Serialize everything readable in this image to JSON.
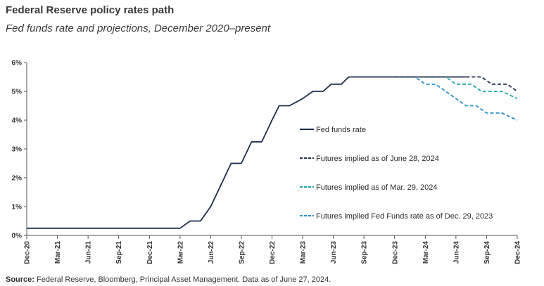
{
  "title": "Federal Reserve policy rates path",
  "subtitle": "Fed funds rate and projections, December 2020–present",
  "source_label": "Source:",
  "source_text": "Federal Reserve, Bloomberg, Principal Asset Management. Data as of June 27, 2024.",
  "chart_data": {
    "type": "line",
    "title": "Federal Reserve policy rates path",
    "xlabel": "",
    "ylabel": "",
    "ylim": [
      0,
      6
    ],
    "yticks": [
      "0%",
      "1%",
      "2%",
      "3%",
      "4%",
      "5%",
      "6%"
    ],
    "xticks": [
      "Dec-20",
      "Mar-21",
      "Jun-21",
      "Sep-21",
      "Dec-21",
      "Mar-22",
      "Jun-22",
      "Sep-22",
      "Dec-22",
      "Mar-23",
      "Jun-23",
      "Sep-23",
      "Dec-23",
      "Mar-24",
      "Jun-24",
      "Sep-24",
      "Dec-24"
    ],
    "x_unit": "months since Dec-20",
    "x_range": [
      0,
      48
    ],
    "series": [
      {
        "name": "Fed funds rate",
        "color": "#1f2d4d",
        "dash": "solid",
        "points": [
          [
            0,
            0.25
          ],
          [
            15,
            0.25
          ],
          [
            16,
            0.5
          ],
          [
            17,
            0.5
          ],
          [
            18,
            1.0
          ],
          [
            19,
            1.75
          ],
          [
            20,
            2.5
          ],
          [
            21,
            2.5
          ],
          [
            22,
            3.25
          ],
          [
            23,
            3.25
          ],
          [
            24,
            4.0
          ],
          [
            24.7,
            4.5
          ],
          [
            25.7,
            4.5
          ],
          [
            27,
            4.75
          ],
          [
            28,
            5.0
          ],
          [
            29,
            5.0
          ],
          [
            29.8,
            5.25
          ],
          [
            30.8,
            5.25
          ],
          [
            31.5,
            5.5
          ],
          [
            36,
            5.5
          ],
          [
            43,
            5.5
          ]
        ]
      },
      {
        "name": "Futures implied as of June 28, 2024",
        "color": "#1f2d4d",
        "dash": "dashed",
        "points": [
          [
            43,
            5.5
          ],
          [
            44.5,
            5.5
          ],
          [
            45.5,
            5.25
          ],
          [
            47,
            5.25
          ],
          [
            48,
            5.0
          ]
        ]
      },
      {
        "name": "Futures implied as of Mar. 29, 2024",
        "color": "#1aa3a3",
        "dash": "dashed",
        "points": [
          [
            39,
            5.5
          ],
          [
            41,
            5.5
          ],
          [
            42,
            5.25
          ],
          [
            43.5,
            5.25
          ],
          [
            44.5,
            5.0
          ],
          [
            46.5,
            5.0
          ],
          [
            48,
            4.75
          ]
        ]
      },
      {
        "name": "Futures implied Fed Funds rate as of Dec. 29, 2023",
        "color": "#2a8fd0",
        "dash": "dashed",
        "points": [
          [
            36,
            5.5
          ],
          [
            38,
            5.5
          ],
          [
            39,
            5.25
          ],
          [
            40,
            5.25
          ],
          [
            41,
            5.0
          ],
          [
            42,
            4.75
          ],
          [
            43,
            4.5
          ],
          [
            44,
            4.5
          ],
          [
            45,
            4.25
          ],
          [
            46.5,
            4.25
          ],
          [
            48,
            4.0
          ]
        ]
      }
    ],
    "legend_position": "center-right"
  }
}
